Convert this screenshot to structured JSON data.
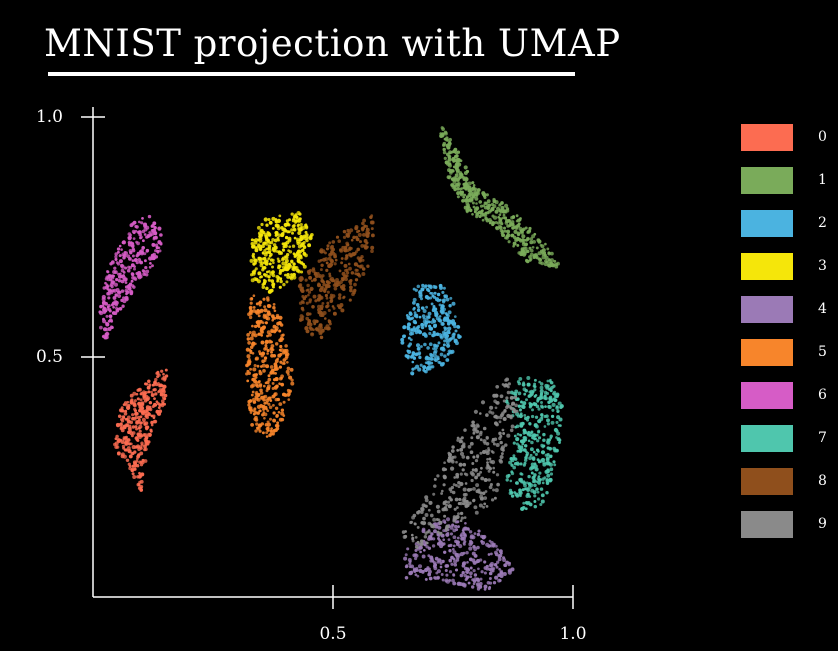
{
  "chart_data": {
    "type": "scatter",
    "title": "MNIST projection with UMAP",
    "xlabel": "",
    "ylabel": "",
    "xlim": [
      0.0,
      1.0
    ],
    "ylim": [
      0.0,
      1.0
    ],
    "x_ticks": [
      "0.5",
      "1.0"
    ],
    "y_ticks": [
      "1.0",
      "0.5"
    ],
    "grid": false,
    "legend_position": "right",
    "legend": [
      {
        "label": "0",
        "color": "#fc6c51"
      },
      {
        "label": "1",
        "color": "#7aab5a"
      },
      {
        "label": "2",
        "color": "#4bb3e0"
      },
      {
        "label": "3",
        "color": "#f5e60a"
      },
      {
        "label": "4",
        "color": "#9b7ab6"
      },
      {
        "label": "5",
        "color": "#f7852b"
      },
      {
        "label": "6",
        "color": "#d65cc6"
      },
      {
        "label": "7",
        "color": "#4fc6ad"
      },
      {
        "label": "8",
        "color": "#8f4f1c"
      },
      {
        "label": "9",
        "color": "#8a8a8a"
      }
    ],
    "clusters": [
      {
        "label": "0",
        "path": [
          [
            0.14,
            0.48
          ],
          [
            0.16,
            0.47
          ],
          [
            0.15,
            0.4
          ],
          [
            0.12,
            0.34
          ],
          [
            0.1,
            0.22
          ],
          [
            0.07,
            0.28
          ],
          [
            0.04,
            0.31
          ],
          [
            0.06,
            0.4
          ]
        ],
        "count": 320
      },
      {
        "label": "1",
        "path": [
          [
            0.72,
            0.99
          ],
          [
            0.76,
            0.93
          ],
          [
            0.8,
            0.85
          ],
          [
            0.86,
            0.82
          ],
          [
            0.94,
            0.74
          ],
          [
            0.98,
            0.68
          ],
          [
            0.9,
            0.7
          ],
          [
            0.84,
            0.77
          ],
          [
            0.78,
            0.8
          ],
          [
            0.74,
            0.87
          ]
        ],
        "count": 420
      },
      {
        "label": "2",
        "path": [
          [
            0.72,
            0.66
          ],
          [
            0.75,
            0.62
          ],
          [
            0.77,
            0.54
          ],
          [
            0.73,
            0.48
          ],
          [
            0.66,
            0.46
          ],
          [
            0.64,
            0.55
          ],
          [
            0.66,
            0.6
          ],
          [
            0.67,
            0.65
          ]
        ],
        "count": 300
      },
      {
        "label": "3",
        "path": [
          [
            0.36,
            0.79
          ],
          [
            0.43,
            0.8
          ],
          [
            0.46,
            0.75
          ],
          [
            0.44,
            0.68
          ],
          [
            0.37,
            0.63
          ],
          [
            0.33,
            0.66
          ],
          [
            0.33,
            0.75
          ]
        ],
        "count": 330
      },
      {
        "label": "4",
        "path": [
          [
            0.68,
            0.14
          ],
          [
            0.75,
            0.17
          ],
          [
            0.82,
            0.13
          ],
          [
            0.88,
            0.06
          ],
          [
            0.82,
            0.01
          ],
          [
            0.74,
            0.03
          ],
          [
            0.65,
            0.04
          ],
          [
            0.65,
            0.1
          ]
        ],
        "count": 330
      },
      {
        "label": "5",
        "path": [
          [
            0.33,
            0.63
          ],
          [
            0.38,
            0.62
          ],
          [
            0.4,
            0.55
          ],
          [
            0.42,
            0.45
          ],
          [
            0.4,
            0.37
          ],
          [
            0.37,
            0.33
          ],
          [
            0.33,
            0.35
          ],
          [
            0.32,
            0.45
          ],
          [
            0.32,
            0.55
          ]
        ],
        "count": 360
      },
      {
        "label": "6",
        "path": [
          [
            0.08,
            0.78
          ],
          [
            0.13,
            0.8
          ],
          [
            0.15,
            0.74
          ],
          [
            0.12,
            0.68
          ],
          [
            0.07,
            0.62
          ],
          [
            0.02,
            0.52
          ],
          [
            0.01,
            0.58
          ],
          [
            0.03,
            0.68
          ]
        ],
        "count": 300
      },
      {
        "label": "7",
        "path": [
          [
            0.89,
            0.46
          ],
          [
            0.95,
            0.46
          ],
          [
            0.98,
            0.4
          ],
          [
            0.97,
            0.3
          ],
          [
            0.94,
            0.19
          ],
          [
            0.88,
            0.18
          ],
          [
            0.86,
            0.25
          ],
          [
            0.88,
            0.33
          ],
          [
            0.86,
            0.41
          ]
        ],
        "count": 380
      },
      {
        "label": "8",
        "path": [
          [
            0.52,
            0.76
          ],
          [
            0.59,
            0.8
          ],
          [
            0.58,
            0.7
          ],
          [
            0.54,
            0.62
          ],
          [
            0.47,
            0.53
          ],
          [
            0.43,
            0.57
          ],
          [
            0.43,
            0.66
          ],
          [
            0.47,
            0.72
          ]
        ],
        "count": 330
      },
      {
        "label": "9",
        "path": [
          [
            0.86,
            0.46
          ],
          [
            0.89,
            0.4
          ],
          [
            0.86,
            0.3
          ],
          [
            0.84,
            0.2
          ],
          [
            0.76,
            0.15
          ],
          [
            0.68,
            0.1
          ],
          [
            0.64,
            0.13
          ],
          [
            0.69,
            0.2
          ],
          [
            0.74,
            0.3
          ],
          [
            0.79,
            0.38
          ]
        ],
        "count": 340
      }
    ]
  }
}
